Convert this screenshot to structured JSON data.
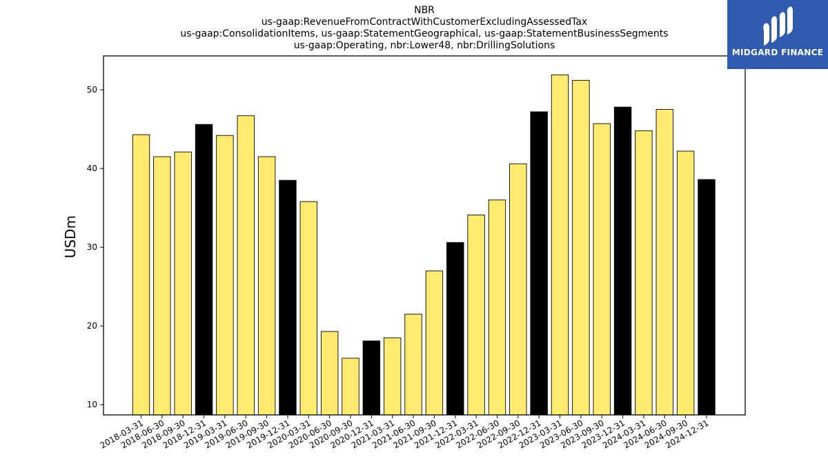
{
  "titles": [
    "NBR",
    "us-gaap:RevenueFromContractWithCustomerExcludingAssessedTax",
    "us-gaap:ConsolidationItems, us-gaap:StatementGeographical, us-gaap:StatementBusinessSegments",
    "us-gaap:Operating, nbr:Lower48, nbr:DrillingSolutions"
  ],
  "logo": {
    "text": "MIDGARD FINANCE",
    "background": "#2f5baf"
  },
  "colors": {
    "quarter_bar": "#fdea6f",
    "year_end_bar": "#000000",
    "bar_edge": "#000000"
  },
  "chart_data": {
    "type": "bar",
    "ylabel": "USDm",
    "xlabel": "",
    "ylim": [
      8.7,
      54.3
    ],
    "yticks": [
      10,
      20,
      30,
      40,
      50
    ],
    "grid": false,
    "categories": [
      "2018-03-31",
      "2018-06-30",
      "2018-09-30",
      "2018-12-31",
      "2019-03-31",
      "2019-06-30",
      "2019-09-30",
      "2019-12-31",
      "2020-03-31",
      "2020-06-30",
      "2020-09-30",
      "2020-12-31",
      "2021-03-31",
      "2021-06-30",
      "2021-09-30",
      "2021-12-31",
      "2022-03-31",
      "2022-06-30",
      "2022-09-30",
      "2022-12-31",
      "2023-03-31",
      "2023-06-30",
      "2023-09-30",
      "2023-12-31",
      "2024-03-31",
      "2024-06-30",
      "2024-09-30",
      "2024-12-31"
    ],
    "values": [
      44.3,
      41.5,
      42.1,
      45.6,
      44.2,
      46.7,
      41.5,
      38.5,
      35.8,
      19.3,
      15.9,
      18.1,
      18.5,
      21.5,
      27.0,
      30.6,
      34.1,
      36.0,
      40.6,
      47.2,
      51.9,
      51.2,
      45.7,
      47.8,
      44.8,
      47.5,
      42.2,
      38.6
    ]
  }
}
